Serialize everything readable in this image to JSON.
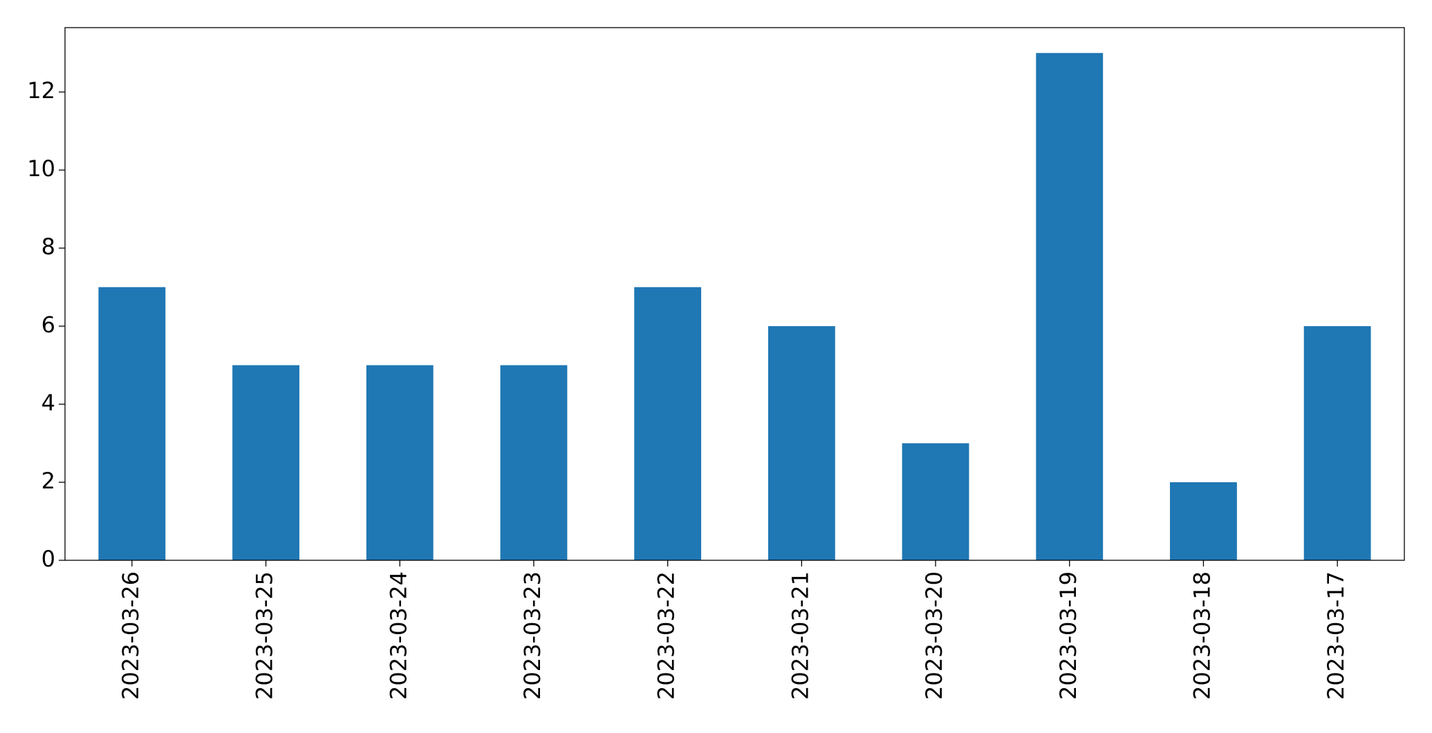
{
  "chart_data": {
    "type": "bar",
    "categories": [
      "2023-03-26",
      "2023-03-25",
      "2023-03-24",
      "2023-03-23",
      "2023-03-22",
      "2023-03-21",
      "2023-03-20",
      "2023-03-19",
      "2023-03-18",
      "2023-03-17"
    ],
    "values": [
      7,
      5,
      5,
      5,
      7,
      6,
      3,
      13,
      2,
      6
    ],
    "color": "#1f77b4",
    "ylim": [
      0,
      13.65
    ],
    "yticks": [
      0,
      2,
      4,
      6,
      8,
      10,
      12
    ],
    "grid": false
  }
}
